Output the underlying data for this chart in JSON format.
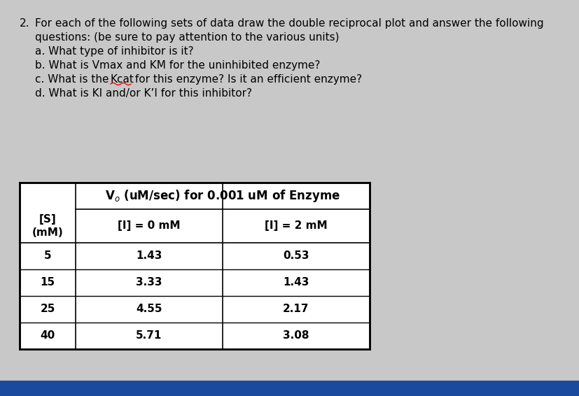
{
  "title_number": "2.",
  "title_line1": "For each of the following sets of data draw the double reciprocal plot and answer the following",
  "title_line2": "questions: (be sure to pay attention to the various units)",
  "question_a": "a. What type of inhibitor is it?",
  "question_b": "b. What is Vmax and KM for the uninhibited enzyme?",
  "question_c_pre": "c. What is the ",
  "question_c_kcat": "Kcat",
  "question_c_post": " for this enzyme? Is it an efficient enzyme?",
  "question_d": "d. What is KI and/or K’I for this inhibitor?",
  "table_header_main": "V₀ (uM/sec) for 0.001 uM of Enzyme",
  "col0_header": "[S]\n(mM)",
  "col1_header": "[I] = 0 mM",
  "col2_header": "[I] = 2 mM",
  "s_values": [
    5,
    15,
    25,
    40
  ],
  "v_no_inhibitor": [
    1.43,
    3.33,
    4.55,
    5.71
  ],
  "v_with_inhibitor": [
    0.53,
    1.43,
    2.17,
    3.08
  ],
  "bg_color": "#c8c8c8",
  "text_color": "#000000",
  "font_size_text": 11,
  "font_size_table": 11,
  "blue_bar_color": "#1a4a9e"
}
